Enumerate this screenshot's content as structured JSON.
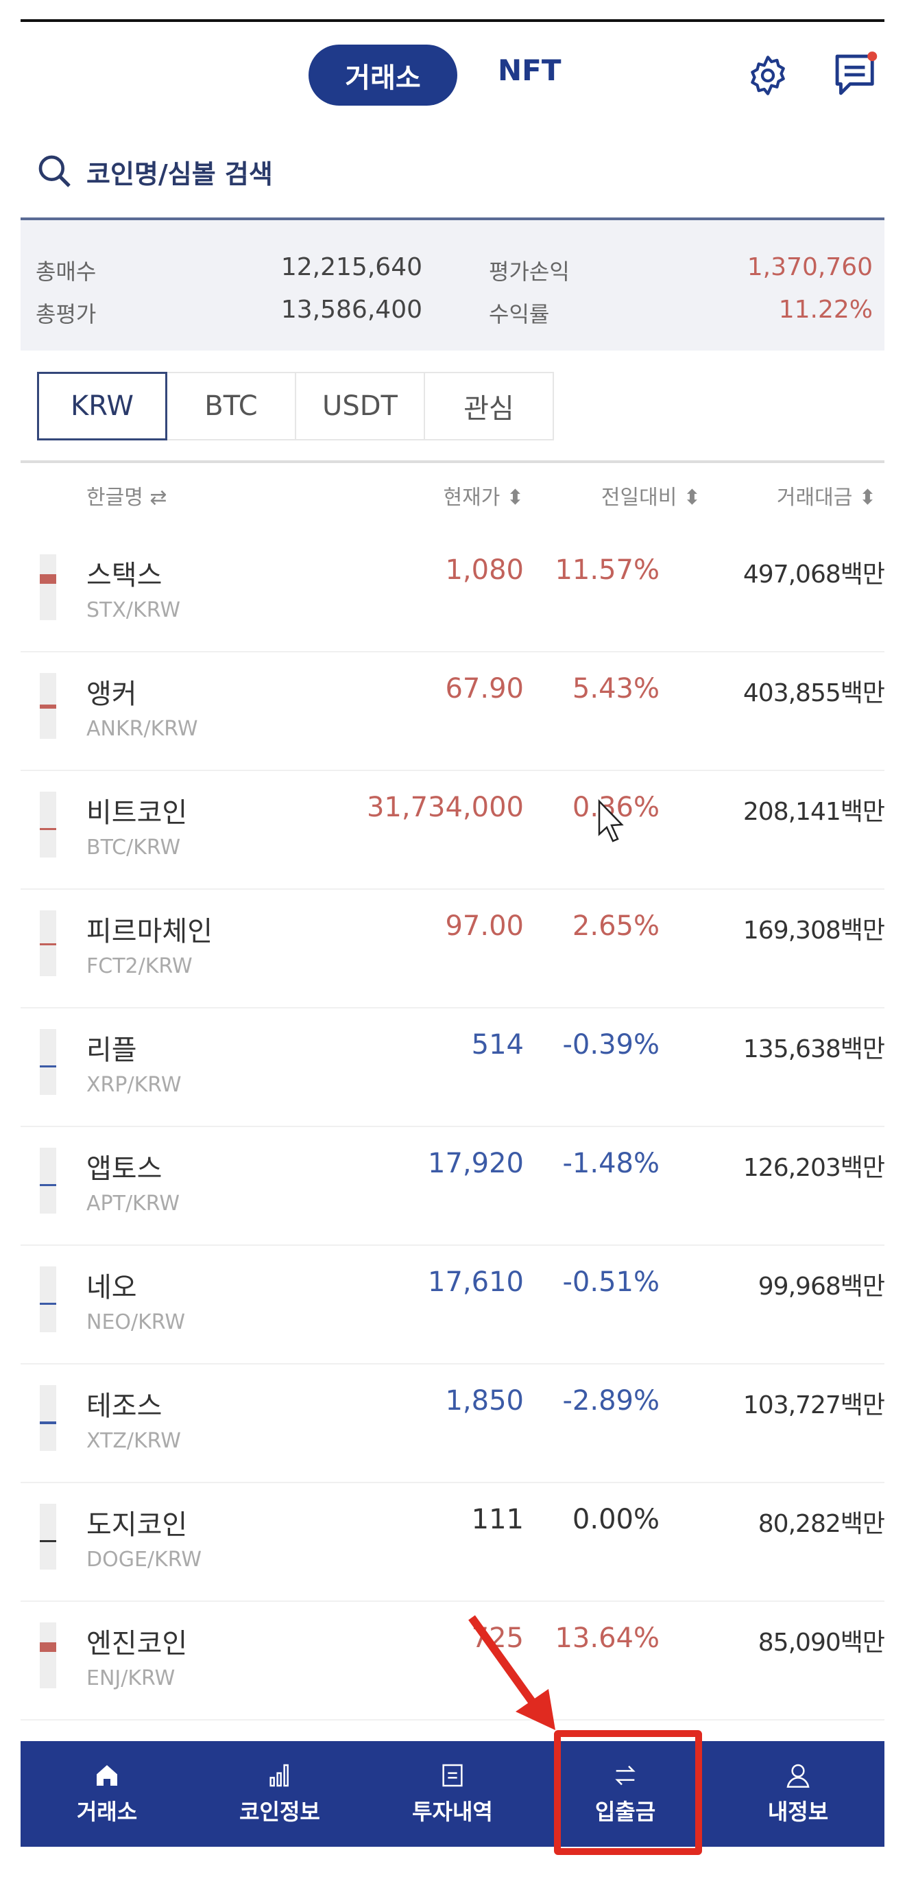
{
  "header": {
    "active_tab": "거래소",
    "nft_tab": "NFT",
    "icons": [
      "gear-icon",
      "chat-icon"
    ],
    "notification_dot_color": "#e0463a"
  },
  "search": {
    "placeholder": "코인명/심볼 검색"
  },
  "summary": {
    "total_buy_label": "총매수",
    "total_buy": "12,215,640",
    "total_eval_label": "총평가",
    "total_eval": "13,586,400",
    "pnl_label": "평가손익",
    "pnl": "1,370,760",
    "return_label": "수익률",
    "return": "11.22%"
  },
  "market_tabs": [
    {
      "label": "KRW",
      "active": true
    },
    {
      "label": "BTC"
    },
    {
      "label": "USDT"
    },
    {
      "label": "관심"
    }
  ],
  "columns": {
    "name": "한글명 ⇄",
    "price": "현재가 ⬍",
    "change": "전일대비 ⬍",
    "volume": "거래대금 ⬍"
  },
  "colors": {
    "up": "#c2625b",
    "down": "#3b5aa6",
    "flat": "#333333",
    "brand": "#22398c",
    "highlight": "#e02a20"
  },
  "coins": [
    {
      "name": "스택스",
      "symbol": "STX/KRW",
      "price": "1,080",
      "change": "11.57%",
      "volume": "497,068백만",
      "dir": "up",
      "candle": [
        0.3,
        0.45
      ]
    },
    {
      "name": "앵커",
      "symbol": "ANKR/KRW",
      "price": "67.90",
      "change": "5.43%",
      "volume": "403,855백만",
      "dir": "up",
      "candle": [
        0.48,
        0.54
      ]
    },
    {
      "name": "비트코인",
      "symbol": "BTC/KRW",
      "price": "31,734,000",
      "change": "0.36%",
      "volume": "208,141백만",
      "dir": "up",
      "candle": [
        0.55,
        0.57
      ]
    },
    {
      "name": "피르마체인",
      "symbol": "FCT2/KRW",
      "price": "97.00",
      "change": "2.65%",
      "volume": "169,308백만",
      "dir": "up",
      "candle": [
        0.5,
        0.53
      ]
    },
    {
      "name": "리플",
      "symbol": "XRP/KRW",
      "price": "514",
      "change": "-0.39%",
      "volume": "135,638백만",
      "dir": "down",
      "candle": [
        0.55,
        0.57
      ]
    },
    {
      "name": "앱토스",
      "symbol": "APT/KRW",
      "price": "17,920",
      "change": "-1.48%",
      "volume": "126,203백만",
      "dir": "down",
      "candle": [
        0.55,
        0.57
      ]
    },
    {
      "name": "네오",
      "symbol": "NEO/KRW",
      "price": "17,610",
      "change": "-0.51%",
      "volume": "99,968백만",
      "dir": "down",
      "candle": [
        0.55,
        0.57
      ]
    },
    {
      "name": "테조스",
      "symbol": "XTZ/KRW",
      "price": "1,850",
      "change": "-2.89%",
      "volume": "103,727백만",
      "dir": "down",
      "candle": [
        0.55,
        0.59
      ]
    },
    {
      "name": "도지코인",
      "symbol": "DOGE/KRW",
      "price": "111",
      "change": "0.00%",
      "volume": "80,282백만",
      "dir": "flat",
      "candle": [
        0.55,
        0.57
      ]
    },
    {
      "name": "엔진코인",
      "symbol": "ENJ/KRW",
      "price": "725",
      "change": "13.64%",
      "volume": "85,090백만",
      "dir": "up",
      "candle": [
        0.3,
        0.45
      ]
    }
  ],
  "bottom_nav": [
    {
      "label": "거래소",
      "icon": "home-icon",
      "active": true
    },
    {
      "label": "코인정보",
      "icon": "chart-icon"
    },
    {
      "label": "투자내역",
      "icon": "document-icon"
    },
    {
      "label": "입출금",
      "icon": "transfer-icon",
      "highlighted": true
    },
    {
      "label": "내정보",
      "icon": "user-icon"
    }
  ]
}
